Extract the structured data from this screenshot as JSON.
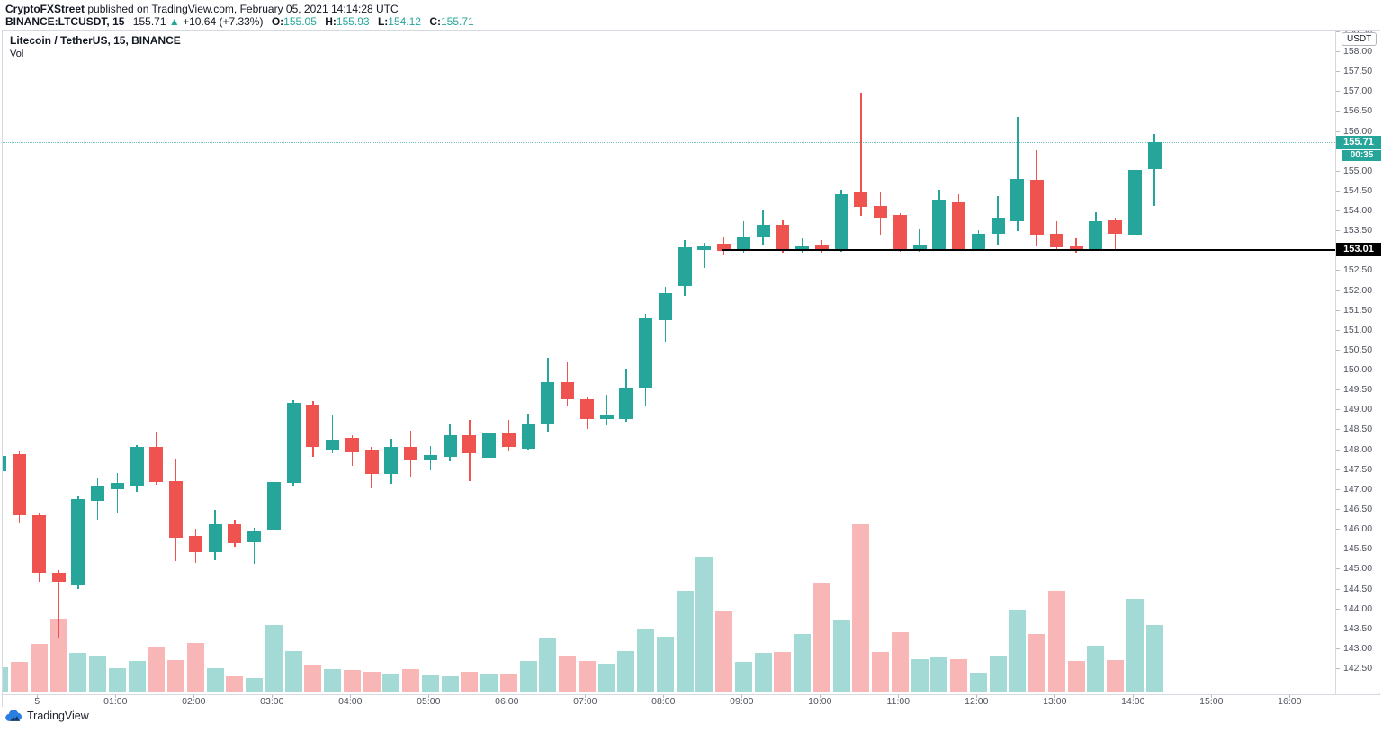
{
  "header": {
    "publisher": "CryptoFXStreet",
    "published_rest": " published on TradingView.com, February 05, 2021 14:14:28 UTC",
    "symbol_text": "BINANCE:LTCUSDT, 15",
    "price": "155.71",
    "arrow": "▲",
    "change": "+10.64 (+7.33%)",
    "o_label": "O:",
    "o_value": "155.05",
    "h_label": "H:",
    "h_value": "155.93",
    "l_label": "L:",
    "l_value": "154.12",
    "c_label": "C:",
    "c_value": "155.71"
  },
  "legend": {
    "title": "Litecoin / TetherUS, 15, BINANCE",
    "indicator": "Vol"
  },
  "price_axis": {
    "unit": "USDT",
    "labels": [
      158.5,
      158.0,
      157.5,
      157.0,
      156.5,
      156.0,
      155.0,
      154.5,
      154.0,
      153.5,
      152.5,
      152.0,
      151.5,
      151.0,
      150.5,
      150.0,
      149.5,
      149.0,
      148.5,
      148.0,
      147.5,
      147.0,
      146.5,
      146.0,
      145.5,
      145.0,
      144.5,
      144.0,
      143.5,
      143.0,
      142.5
    ],
    "current_badge": "155.71",
    "countdown": "00:35",
    "level_badge": "153.01"
  },
  "time_axis": {
    "labels": [
      "5",
      "01:00",
      "02:00",
      "03:00",
      "04:00",
      "05:00",
      "06:00",
      "07:00",
      "08:00",
      "09:00",
      "10:00",
      "11:00",
      "12:00",
      "13:00",
      "14:00",
      "15:00",
      "16:00"
    ]
  },
  "footer": {
    "logo_text": "TradingView"
  },
  "colors": {
    "up": "#26a69a",
    "down": "#ef5350",
    "vol_up": "rgba(38,166,154,0.42)",
    "vol_down": "rgba(239,83,80,0.42)",
    "current_line": "#26a69a",
    "level_line": "#000000",
    "axis_text": "#50535e",
    "border": "#d6d9e0",
    "logo_blue": "#2a7de1",
    "badge_text": "#ffffff"
  },
  "chart_data": {
    "type": "candlestick",
    "pair": "Litecoin / TetherUS",
    "symbol": "LTCUSDT",
    "exchange": "BINANCE",
    "interval_minutes": 15,
    "legend_indicator": "Vol",
    "price_axis_range": [
      142.1,
      158.6
    ],
    "visible_time_range": [
      "23:30",
      "14:15"
    ],
    "grid": "off",
    "current_price": 155.71,
    "countdown_to_bar_close": "00:35",
    "level_line": {
      "price": 153.01,
      "starts_at_time": "08:45"
    },
    "volume_note": "volume has no visible numeric scale; vol_rel is relative bar height in px",
    "columns": [
      "time",
      "open",
      "high",
      "low",
      "close",
      "vol_rel"
    ],
    "candles": [
      [
        "23:30",
        147.45,
        147.9,
        147.4,
        147.83,
        28
      ],
      [
        "23:45",
        147.88,
        147.95,
        146.14,
        146.34,
        34
      ],
      [
        "00:00",
        146.34,
        146.42,
        144.68,
        144.9,
        54
      ],
      [
        "00:15",
        144.9,
        144.97,
        143.28,
        144.67,
        82
      ],
      [
        "00:30",
        144.6,
        146.82,
        144.49,
        146.75,
        44
      ],
      [
        "00:45",
        146.7,
        147.27,
        146.23,
        147.09,
        40
      ],
      [
        "01:00",
        147.0,
        147.41,
        146.41,
        147.15,
        27
      ],
      [
        "01:15",
        147.09,
        148.1,
        146.93,
        148.06,
        35
      ],
      [
        "01:30",
        148.06,
        148.44,
        147.1,
        147.18,
        51
      ],
      [
        "01:45",
        147.2,
        147.77,
        145.2,
        145.77,
        36
      ],
      [
        "02:00",
        145.82,
        146.0,
        145.15,
        145.42,
        55
      ],
      [
        "02:15",
        145.42,
        146.48,
        145.21,
        146.12,
        27
      ],
      [
        "02:30",
        146.12,
        146.22,
        145.55,
        145.64,
        18
      ],
      [
        "02:45",
        145.66,
        146.02,
        145.13,
        145.94,
        16
      ],
      [
        "03:00",
        145.99,
        147.35,
        145.68,
        147.18,
        75
      ],
      [
        "03:15",
        147.15,
        149.23,
        147.09,
        149.16,
        46
      ],
      [
        "03:30",
        149.11,
        149.2,
        147.81,
        148.06,
        30
      ],
      [
        "03:45",
        147.99,
        148.86,
        147.9,
        148.24,
        26
      ],
      [
        "04:00",
        148.28,
        148.35,
        147.58,
        147.92,
        25
      ],
      [
        "04:15",
        147.99,
        148.05,
        147.02,
        147.38,
        23
      ],
      [
        "04:30",
        147.38,
        148.26,
        147.13,
        148.06,
        20
      ],
      [
        "04:45",
        148.06,
        148.47,
        147.31,
        147.72,
        26
      ],
      [
        "05:00",
        147.72,
        148.08,
        147.47,
        147.86,
        19
      ],
      [
        "05:15",
        147.81,
        148.63,
        147.7,
        148.35,
        18
      ],
      [
        "05:30",
        148.35,
        148.74,
        147.2,
        147.9,
        23
      ],
      [
        "05:45",
        147.78,
        148.94,
        147.71,
        148.42,
        21
      ],
      [
        "06:00",
        148.41,
        148.74,
        147.95,
        148.05,
        20
      ],
      [
        "06:15",
        148.01,
        148.89,
        147.99,
        148.65,
        35
      ],
      [
        "06:30",
        148.63,
        150.29,
        148.44,
        149.68,
        61
      ],
      [
        "06:45",
        149.68,
        150.21,
        149.1,
        149.26,
        40
      ],
      [
        "07:00",
        149.26,
        149.32,
        148.5,
        148.75,
        35
      ],
      [
        "07:15",
        148.77,
        149.36,
        148.61,
        148.85,
        32
      ],
      [
        "07:30",
        148.77,
        150.02,
        148.68,
        149.56,
        46
      ],
      [
        "07:45",
        149.56,
        151.4,
        149.08,
        151.28,
        70
      ],
      [
        "08:00",
        151.25,
        152.09,
        150.7,
        151.93,
        62
      ],
      [
        "08:15",
        152.1,
        153.26,
        151.85,
        153.07,
        113
      ],
      [
        "08:30",
        153.0,
        153.18,
        152.55,
        153.1,
        151
      ],
      [
        "08:45",
        153.17,
        153.34,
        152.88,
        152.98,
        91
      ],
      [
        "09:00",
        152.98,
        153.73,
        152.95,
        153.34,
        34
      ],
      [
        "09:15",
        153.34,
        154.0,
        153.15,
        153.64,
        44
      ],
      [
        "09:30",
        153.65,
        153.75,
        152.95,
        152.98,
        45
      ],
      [
        "09:45",
        153.0,
        153.3,
        152.95,
        153.1,
        65
      ],
      [
        "10:00",
        153.11,
        153.25,
        152.95,
        153.02,
        122
      ],
      [
        "10:15",
        152.98,
        154.51,
        152.95,
        154.41,
        80
      ],
      [
        "10:30",
        154.47,
        156.95,
        153.87,
        154.08,
        187
      ],
      [
        "10:45",
        154.11,
        154.47,
        153.38,
        153.83,
        45
      ],
      [
        "11:00",
        153.88,
        153.93,
        152.95,
        152.98,
        67
      ],
      [
        "11:15",
        153.0,
        153.53,
        152.95,
        153.11,
        37
      ],
      [
        "11:30",
        153.04,
        154.51,
        153.0,
        154.28,
        39
      ],
      [
        "11:45",
        154.2,
        154.4,
        153.0,
        153.04,
        37
      ],
      [
        "12:00",
        153.04,
        153.5,
        153.0,
        153.42,
        22
      ],
      [
        "12:15",
        153.42,
        154.36,
        153.13,
        153.83,
        41
      ],
      [
        "12:30",
        153.74,
        156.35,
        153.49,
        154.8,
        92
      ],
      [
        "12:45",
        154.78,
        155.52,
        153.1,
        153.38,
        65
      ],
      [
        "13:00",
        153.42,
        153.72,
        153.0,
        153.08,
        113
      ],
      [
        "13:15",
        153.1,
        153.3,
        152.95,
        153.02,
        35
      ],
      [
        "13:30",
        153.02,
        153.95,
        153.0,
        153.73,
        52
      ],
      [
        "13:45",
        153.76,
        153.82,
        153.04,
        153.42,
        36
      ],
      [
        "14:00",
        153.4,
        155.91,
        153.38,
        155.02,
        104
      ],
      [
        "14:15",
        155.05,
        155.93,
        154.12,
        155.71,
        75
      ]
    ]
  }
}
